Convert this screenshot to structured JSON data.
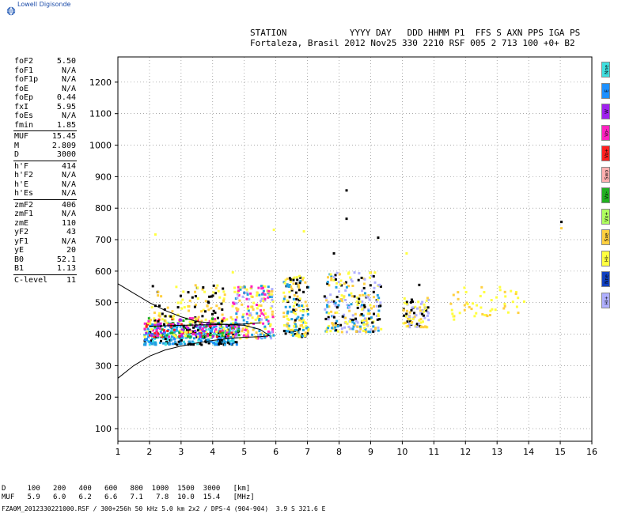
{
  "brand": "Lowell Digisonde",
  "header": {
    "line1": "STATION            YYYY DAY   DDD HHMM P1  FFS S AXN PPS IGA PS",
    "line2": "Fortaleza, Brasil 2012 Nov25 330 2210 RSF 005 2 713 100 +0+ B2"
  },
  "params": [
    {
      "key": "foF2",
      "value": "5.50"
    },
    {
      "key": "foF1",
      "value": "N/A"
    },
    {
      "key": "foF1p",
      "value": "N/A"
    },
    {
      "key": "foE",
      "value": "N/A"
    },
    {
      "key": "foEp",
      "value": "0.44"
    },
    {
      "key": "fxI",
      "value": "5.95"
    },
    {
      "key": "foEs",
      "value": "N/A"
    },
    {
      "key": "fmin",
      "value": "1.85"
    },
    {
      "key": "MUF",
      "value": "15.45"
    },
    {
      "key": "M",
      "value": "2.809"
    },
    {
      "key": "D",
      "value": "3000"
    },
    {
      "key": "h'F",
      "value": "414"
    },
    {
      "key": "h'F2",
      "value": "N/A"
    },
    {
      "key": "h'E",
      "value": "N/A"
    },
    {
      "key": "h'Es",
      "value": "N/A"
    },
    {
      "key": "zmF2",
      "value": "406"
    },
    {
      "key": "zmF1",
      "value": "N/A"
    },
    {
      "key": "zmE",
      "value": "110"
    },
    {
      "key": "yF2",
      "value": "43"
    },
    {
      "key": "yF1",
      "value": "N/A"
    },
    {
      "key": "yE",
      "value": "20"
    },
    {
      "key": "B0",
      "value": "52.1"
    },
    {
      "key": "B1",
      "value": "1.13"
    },
    {
      "key": "C-level",
      "value": "11"
    }
  ],
  "legend": [
    {
      "label": "Nne",
      "color": "#40e0e0"
    },
    {
      "label": "E",
      "color": "#1e90ff"
    },
    {
      "label": "W",
      "color": "#a020f0"
    },
    {
      "label": "Vo-",
      "color": "#ff20c0"
    },
    {
      "label": "Vo+",
      "color": "#ff2020"
    },
    {
      "label": "Swo",
      "color": "#ffb0b0"
    },
    {
      "label": "Vx-",
      "color": "#20b020"
    },
    {
      "label": "Vx+",
      "color": "#b0ff60"
    },
    {
      "label": "Sxe",
      "color": "#ffd040"
    },
    {
      "label": "Hi-",
      "color": "#ffff40"
    },
    {
      "label": "Nne",
      "color": "#1040c0"
    },
    {
      "label": "Hi+",
      "color": "#b0b0ff"
    }
  ],
  "footer": {
    "d_row": "D     100   200   400   600   800  1000  1500  3000   [km]",
    "muf_row": "MUF   5.9   6.0   6.2   6.6   7.1   7.8  10.0  15.4   [MHz]",
    "file_line": "FZA0M_2012330221000.RSF / 300+256h 50 kHz 5.0 km 2x2 / DPS-4 (904-904)  3.9 S 321.6 E"
  },
  "chart_data": {
    "type": "scatter",
    "x_ticks": [
      1,
      2,
      3,
      4,
      5,
      6,
      7,
      8,
      9,
      10,
      11,
      12,
      13,
      14,
      15,
      16
    ],
    "y_ticks": [
      100,
      200,
      300,
      400,
      500,
      600,
      700,
      800,
      900,
      1000,
      1100,
      1200
    ],
    "xlim": [
      1,
      16
    ],
    "ylim": [
      60,
      1280
    ],
    "grid": true,
    "clusters": [
      {
        "x": [
          1.8,
          4.8
        ],
        "y": [
          370,
          440
        ],
        "colors": [
          "#20a0e0",
          "#1e90ff",
          "#000000",
          "#40e0e0"
        ],
        "n": 380
      },
      {
        "x": [
          1.8,
          4.8
        ],
        "y": [
          395,
          455
        ],
        "colors": [
          "#ffff40",
          "#ff20c0",
          "#a020f0",
          "#20b020",
          "#ff2020"
        ],
        "n": 220
      },
      {
        "x": [
          2.0,
          4.6
        ],
        "y": [
          440,
          560
        ],
        "colors": [
          "#ffff40",
          "#ffd040",
          "#000000"
        ],
        "n": 110
      },
      {
        "x": [
          4.6,
          5.9
        ],
        "y": [
          390,
          560
        ],
        "colors": [
          "#ffff40",
          "#ffd040",
          "#20a0e0",
          "#b0b0ff",
          "#ff20c0"
        ],
        "n": 200
      },
      {
        "x": [
          6.2,
          7.0
        ],
        "y": [
          395,
          590
        ],
        "colors": [
          "#ffff40",
          "#ffd040",
          "#000000",
          "#20a0e0"
        ],
        "n": 160
      },
      {
        "x": [
          7.5,
          9.3
        ],
        "y": [
          410,
          600
        ],
        "colors": [
          "#ffff40",
          "#ffd040",
          "#20a0e0",
          "#000000",
          "#b0b0ff"
        ],
        "n": 260
      },
      {
        "x": [
          10.0,
          10.8
        ],
        "y": [
          425,
          520
        ],
        "colors": [
          "#ffff40",
          "#ffd040",
          "#000000",
          "#b0b0ff"
        ],
        "n": 90
      },
      {
        "x": [
          11.5,
          13.9
        ],
        "y": [
          460,
          560
        ],
        "colors": [
          "#ffff40",
          "#ffd040"
        ],
        "n": 50
      }
    ],
    "traces": [
      {
        "x": [
          1.0,
          1.5,
          2.0,
          2.5,
          3.0,
          3.5,
          4.0,
          4.5,
          5.0,
          5.5,
          5.8
        ],
        "y": [
          560,
          530,
          500,
          475,
          455,
          440,
          435,
          430,
          428,
          415,
          395
        ]
      },
      {
        "x": [
          1.0,
          1.5,
          2.0,
          2.5,
          3.0,
          3.5,
          4.0,
          4.5,
          5.0,
          5.5,
          5.8
        ],
        "y": [
          260,
          300,
          330,
          350,
          362,
          372,
          380,
          386,
          390,
          392,
          395
        ]
      },
      {
        "x": [
          2.0,
          3.0,
          4.0,
          5.0,
          5.5
        ],
        "y": [
          425,
          428,
          430,
          432,
          436
        ]
      }
    ]
  }
}
